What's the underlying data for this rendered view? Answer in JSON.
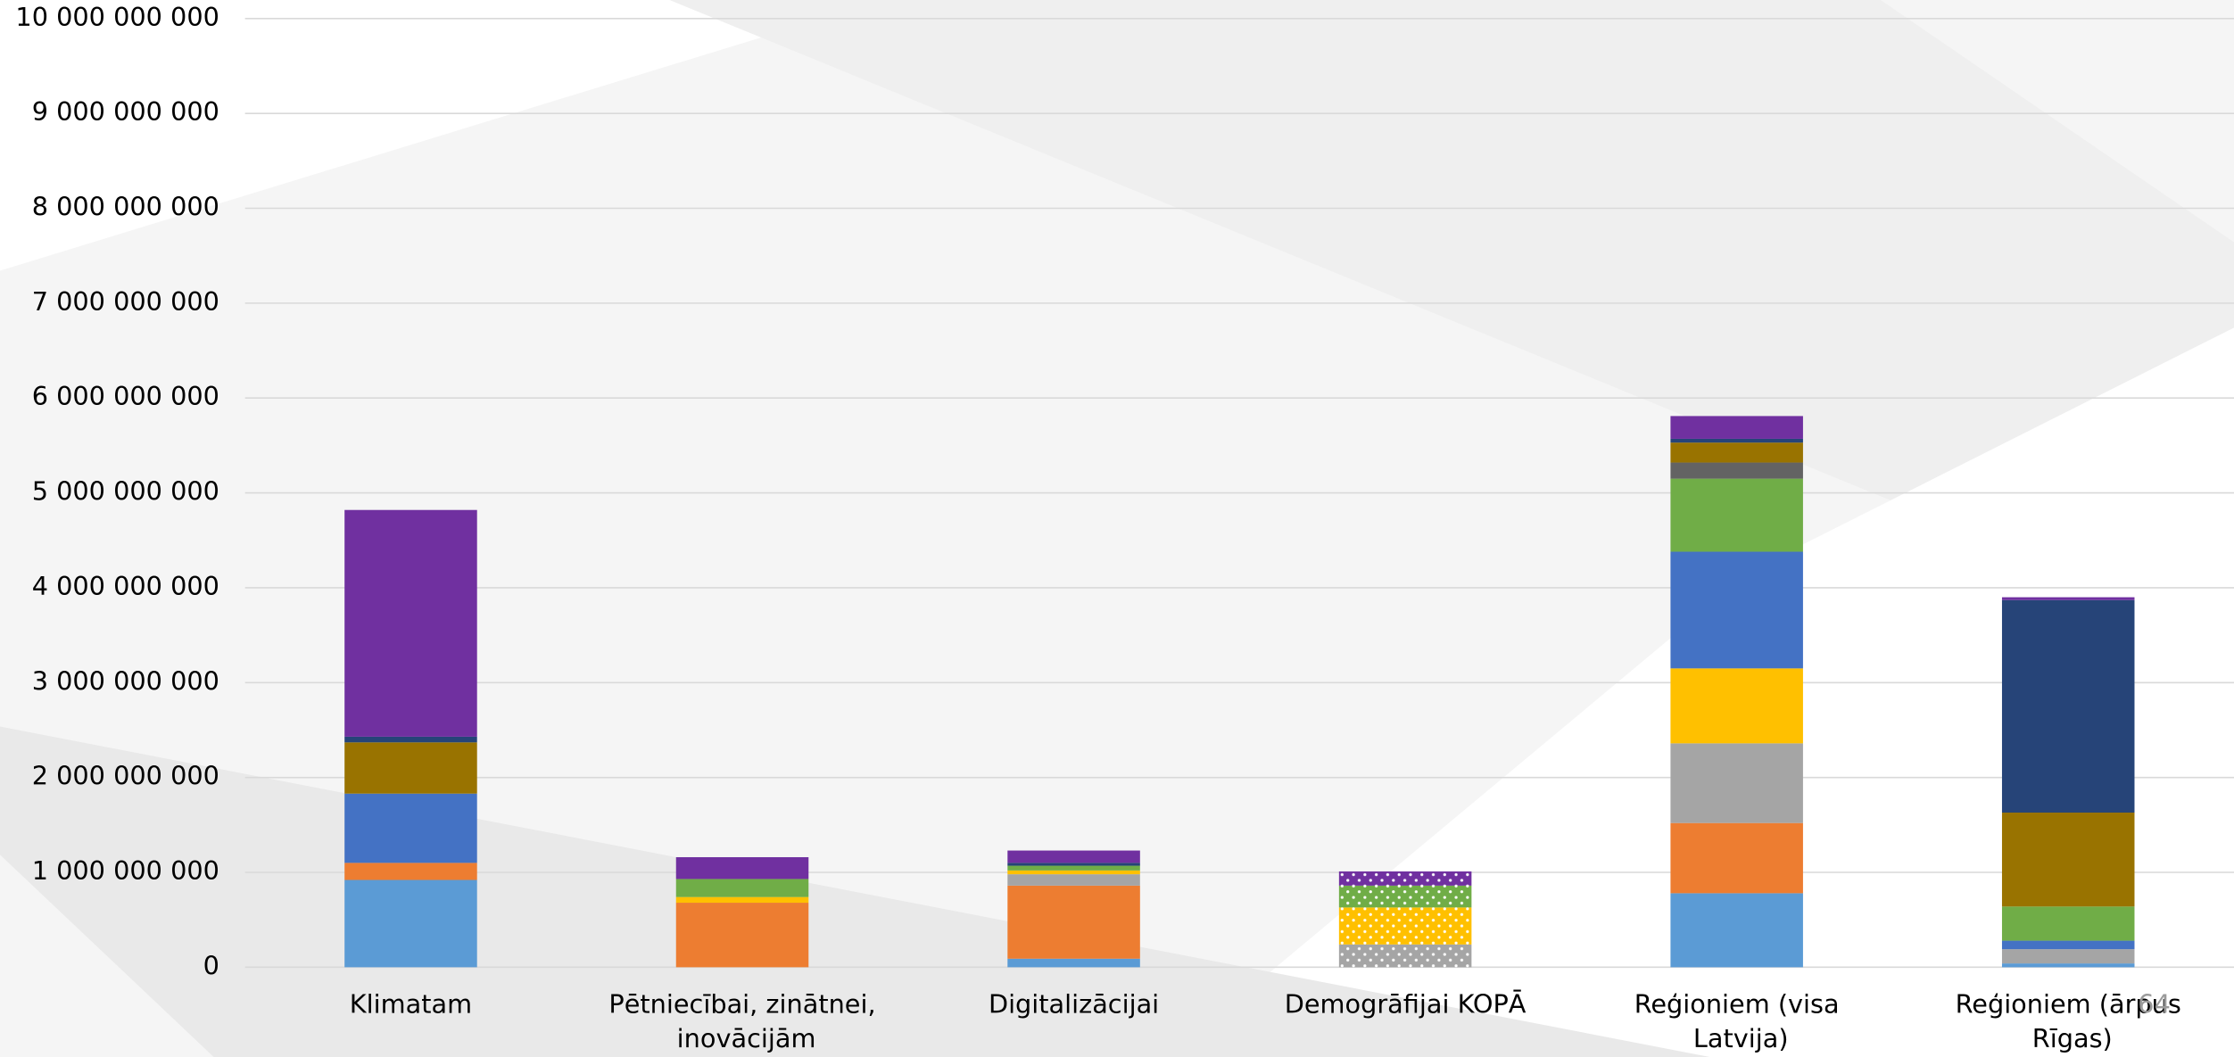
{
  "chart_data": {
    "type": "stacked_bar",
    "categories": [
      "Klimatam",
      "Pētniecībai, zinātnei, inovācijām",
      "Digitalizācijai",
      "Demogrāfijai KOPĀ",
      "Reģioniem (visa Latvija)",
      "Reģioniem (ārpus Rīgas)"
    ],
    "series": [
      {
        "color": "#5b9bd5",
        "values": [
          920000000,
          null,
          90000000,
          null,
          780000000,
          40000000
        ]
      },
      {
        "color": "#ed7d31",
        "values": [
          180000000,
          680000000,
          770000000,
          null,
          740000000,
          null
        ]
      },
      {
        "color": "#a5a5a5",
        "values": [
          null,
          null,
          120000000,
          null,
          840000000,
          150000000
        ]
      },
      {
        "color": "#ffc000",
        "values": [
          null,
          60000000,
          40000000,
          null,
          790000000,
          null
        ]
      },
      {
        "color": "#4472c4",
        "values": [
          730000000,
          null,
          null,
          null,
          1230000000,
          90000000
        ]
      },
      {
        "color": "#70ad47",
        "values": [
          null,
          190000000,
          50000000,
          null,
          770000000,
          360000000
        ]
      },
      {
        "color": "#636363",
        "values": [
          null,
          null,
          null,
          null,
          170000000,
          null
        ]
      },
      {
        "color": "#997300",
        "values": [
          540000000,
          null,
          null,
          null,
          210000000,
          990000000
        ]
      },
      {
        "color": "#264478",
        "values": [
          60000000,
          null,
          30000000,
          null,
          40000000,
          2240000000
        ]
      },
      {
        "color": "#7030a0",
        "values": [
          2390000000,
          230000000,
          130000000,
          null,
          240000000,
          30000000
        ]
      },
      {
        "color": "#a5a5a5",
        "pattern": "dots",
        "values": [
          null,
          null,
          null,
          240000000,
          null,
          null
        ]
      },
      {
        "color": "#ffc000",
        "pattern": "dots",
        "values": [
          null,
          null,
          null,
          390000000,
          null,
          null
        ]
      },
      {
        "color": "#70ad47",
        "pattern": "dots",
        "values": [
          null,
          null,
          null,
          230000000,
          null,
          null
        ]
      },
      {
        "color": "#7030a0",
        "pattern": "dots",
        "values": [
          null,
          null,
          null,
          150000000,
          null,
          null
        ]
      }
    ],
    "ylim": [
      0,
      10000000000
    ],
    "yticks": [
      {
        "value": 0,
        "label": "0"
      },
      {
        "value": 1000000000,
        "label": "1 000 000 000"
      },
      {
        "value": 2000000000,
        "label": "2 000 000 000"
      },
      {
        "value": 3000000000,
        "label": "3 000 000 000"
      },
      {
        "value": 4000000000,
        "label": "4 000 000 000"
      },
      {
        "value": 5000000000,
        "label": "5 000 000 000"
      },
      {
        "value": 6000000000,
        "label": "6 000 000 000"
      },
      {
        "value": 7000000000,
        "label": "7 000 000 000"
      },
      {
        "value": 8000000000,
        "label": "8 000 000 000"
      },
      {
        "value": 9000000000,
        "label": "9 000 000 000"
      },
      {
        "value": 10000000000,
        "label": "10 000 000 000"
      }
    ],
    "grid": true
  },
  "page_number": "64"
}
